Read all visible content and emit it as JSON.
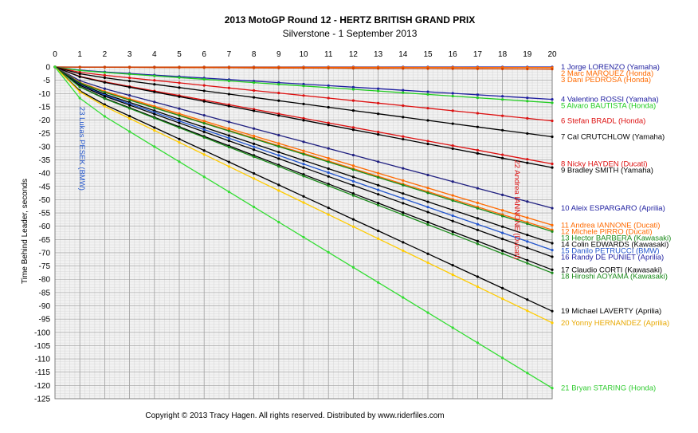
{
  "chart_data": {
    "type": "line",
    "title": "2013 MotoGP Round 12 - HERTZ BRITISH GRAND PRIX",
    "subtitle": "Silverstone - 1 September 2013",
    "xlabel": "",
    "ylabel": "Time Behind Leader, seconds",
    "xlim": [
      0,
      20
    ],
    "ylim": [
      -125,
      0
    ],
    "x_ticks": [
      0,
      1,
      2,
      3,
      4,
      5,
      6,
      7,
      8,
      9,
      10,
      11,
      12,
      13,
      14,
      15,
      16,
      17,
      18,
      19,
      20
    ],
    "y_ticks": [
      0,
      -5,
      -10,
      -15,
      -20,
      -25,
      -30,
      -35,
      -40,
      -45,
      -50,
      -55,
      -60,
      -65,
      -70,
      -75,
      -80,
      -85,
      -90,
      -95,
      -100,
      -105,
      -110,
      -115,
      -120,
      -125
    ],
    "grid": true,
    "x_major_color": "#a0a0a0",
    "x_minor_color": "#d4d4d4",
    "background_color": "#f2f2f2",
    "series": [
      {
        "name": "1 Jorge LORENZO (Yamaha)",
        "color": "#1f1fa0",
        "label_color": "#1f1fa0",
        "final": 0
      },
      {
        "name": "2 Marc MARQUEZ (Honda)",
        "color": "#ff6a00",
        "label_color": "#ff6a00",
        "final": -0.2
      },
      {
        "name": "3 Dani PEDROSA (Honda)",
        "color": "#d04000",
        "label_color": "#ff6a00",
        "final": -0.8
      },
      {
        "name": "4 Valentino ROSSI (Yamaha)",
        "color": "#1f1fa0",
        "label_color": "#1f1fa0",
        "final": -12.2
      },
      {
        "name": "5 Alvaro BAUTISTA (Honda)",
        "color": "#22cc22",
        "label_color": "#22cc22",
        "final": -13.5
      },
      {
        "name": "6 Stefan BRADL (Honda)",
        "color": "#dd1111",
        "label_color": "#dd1111",
        "final": -20.3
      },
      {
        "name": "7 Cal CRUTCHLOW (Yamaha)",
        "color": "#000000",
        "label_color": "#000000",
        "final": -26.3
      },
      {
        "name": "8 Nicky HAYDEN (Ducati)",
        "color": "#dd1111",
        "label_color": "#dd1111",
        "final": -36.5
      },
      {
        "name": "9 Bradley SMITH (Yamaha)",
        "color": "#000000",
        "label_color": "#000000",
        "final": -37.9
      },
      {
        "name": "10 Aleix ESPARGARO (Aprilia)",
        "color": "#1f1f80",
        "label_color": "#1f1fa0",
        "final": -53.2
      },
      {
        "name": "11 Andrea IANNONE (Ducati)",
        "color": "#ff6a00",
        "label_color": "#ff6a00",
        "final": -59.6
      },
      {
        "name": "12 Michele PIRRO (Ducati)",
        "color": "#ff6a00",
        "label_color": "#ff6a00",
        "final": -61.4
      },
      {
        "name": "13 Hector BARBERA (Kawasaki)",
        "color": "#1a8a1a",
        "label_color": "#1a8a1a",
        "final": -62.0
      },
      {
        "name": "14 Colin EDWARDS (Kawasaki)",
        "color": "#000000",
        "label_color": "#000000",
        "final": -66.4
      },
      {
        "name": "15 Danilo PETRUCCI (BMW)",
        "color": "#2255cc",
        "label_color": "#2255cc",
        "final": -69.0
      },
      {
        "name": "16 Randy DE PUNIET (Aprilia)",
        "color": "#000000",
        "label_color": "#1f1fa0",
        "final": -71.5
      },
      {
        "name": "17 Claudio CORTI (Kawasaki)",
        "color": "#000000",
        "label_color": "#000000",
        "final": -76.4
      },
      {
        "name": "18 Hiroshi AOYAMA (Kawasaki)",
        "color": "#1a8a1a",
        "label_color": "#1a8a1a",
        "final": -77.6
      },
      {
        "name": "19 Michael LAVERTY (Aprilia)",
        "color": "#000000",
        "label_color": "#000000",
        "final": -92.0
      },
      {
        "name": "20 Yonny HERNANDEZ (Aprilia)",
        "color": "#ffcc00",
        "label_color": "#e8a800",
        "final": -96.4
      },
      {
        "name": "21 Bryan STARING (Honda)",
        "color": "#33dd33",
        "label_color": "#33cc33",
        "final": -121.0
      }
    ],
    "annotations": [
      {
        "text": "23 Lukas PESEK (BMW)",
        "color": "#2255cc",
        "x": 1.0,
        "y": -15,
        "rotation": 90
      },
      {
        "text": "22 Andrea IANNONE (Ducati)",
        "color": "#dd1111",
        "x": 18.5,
        "y": -35,
        "rotation": 90
      }
    ]
  },
  "footer": "Copyright © 2013 Tracy Hagen.  All rights reserved.  Distributed by www.riderfiles.com"
}
